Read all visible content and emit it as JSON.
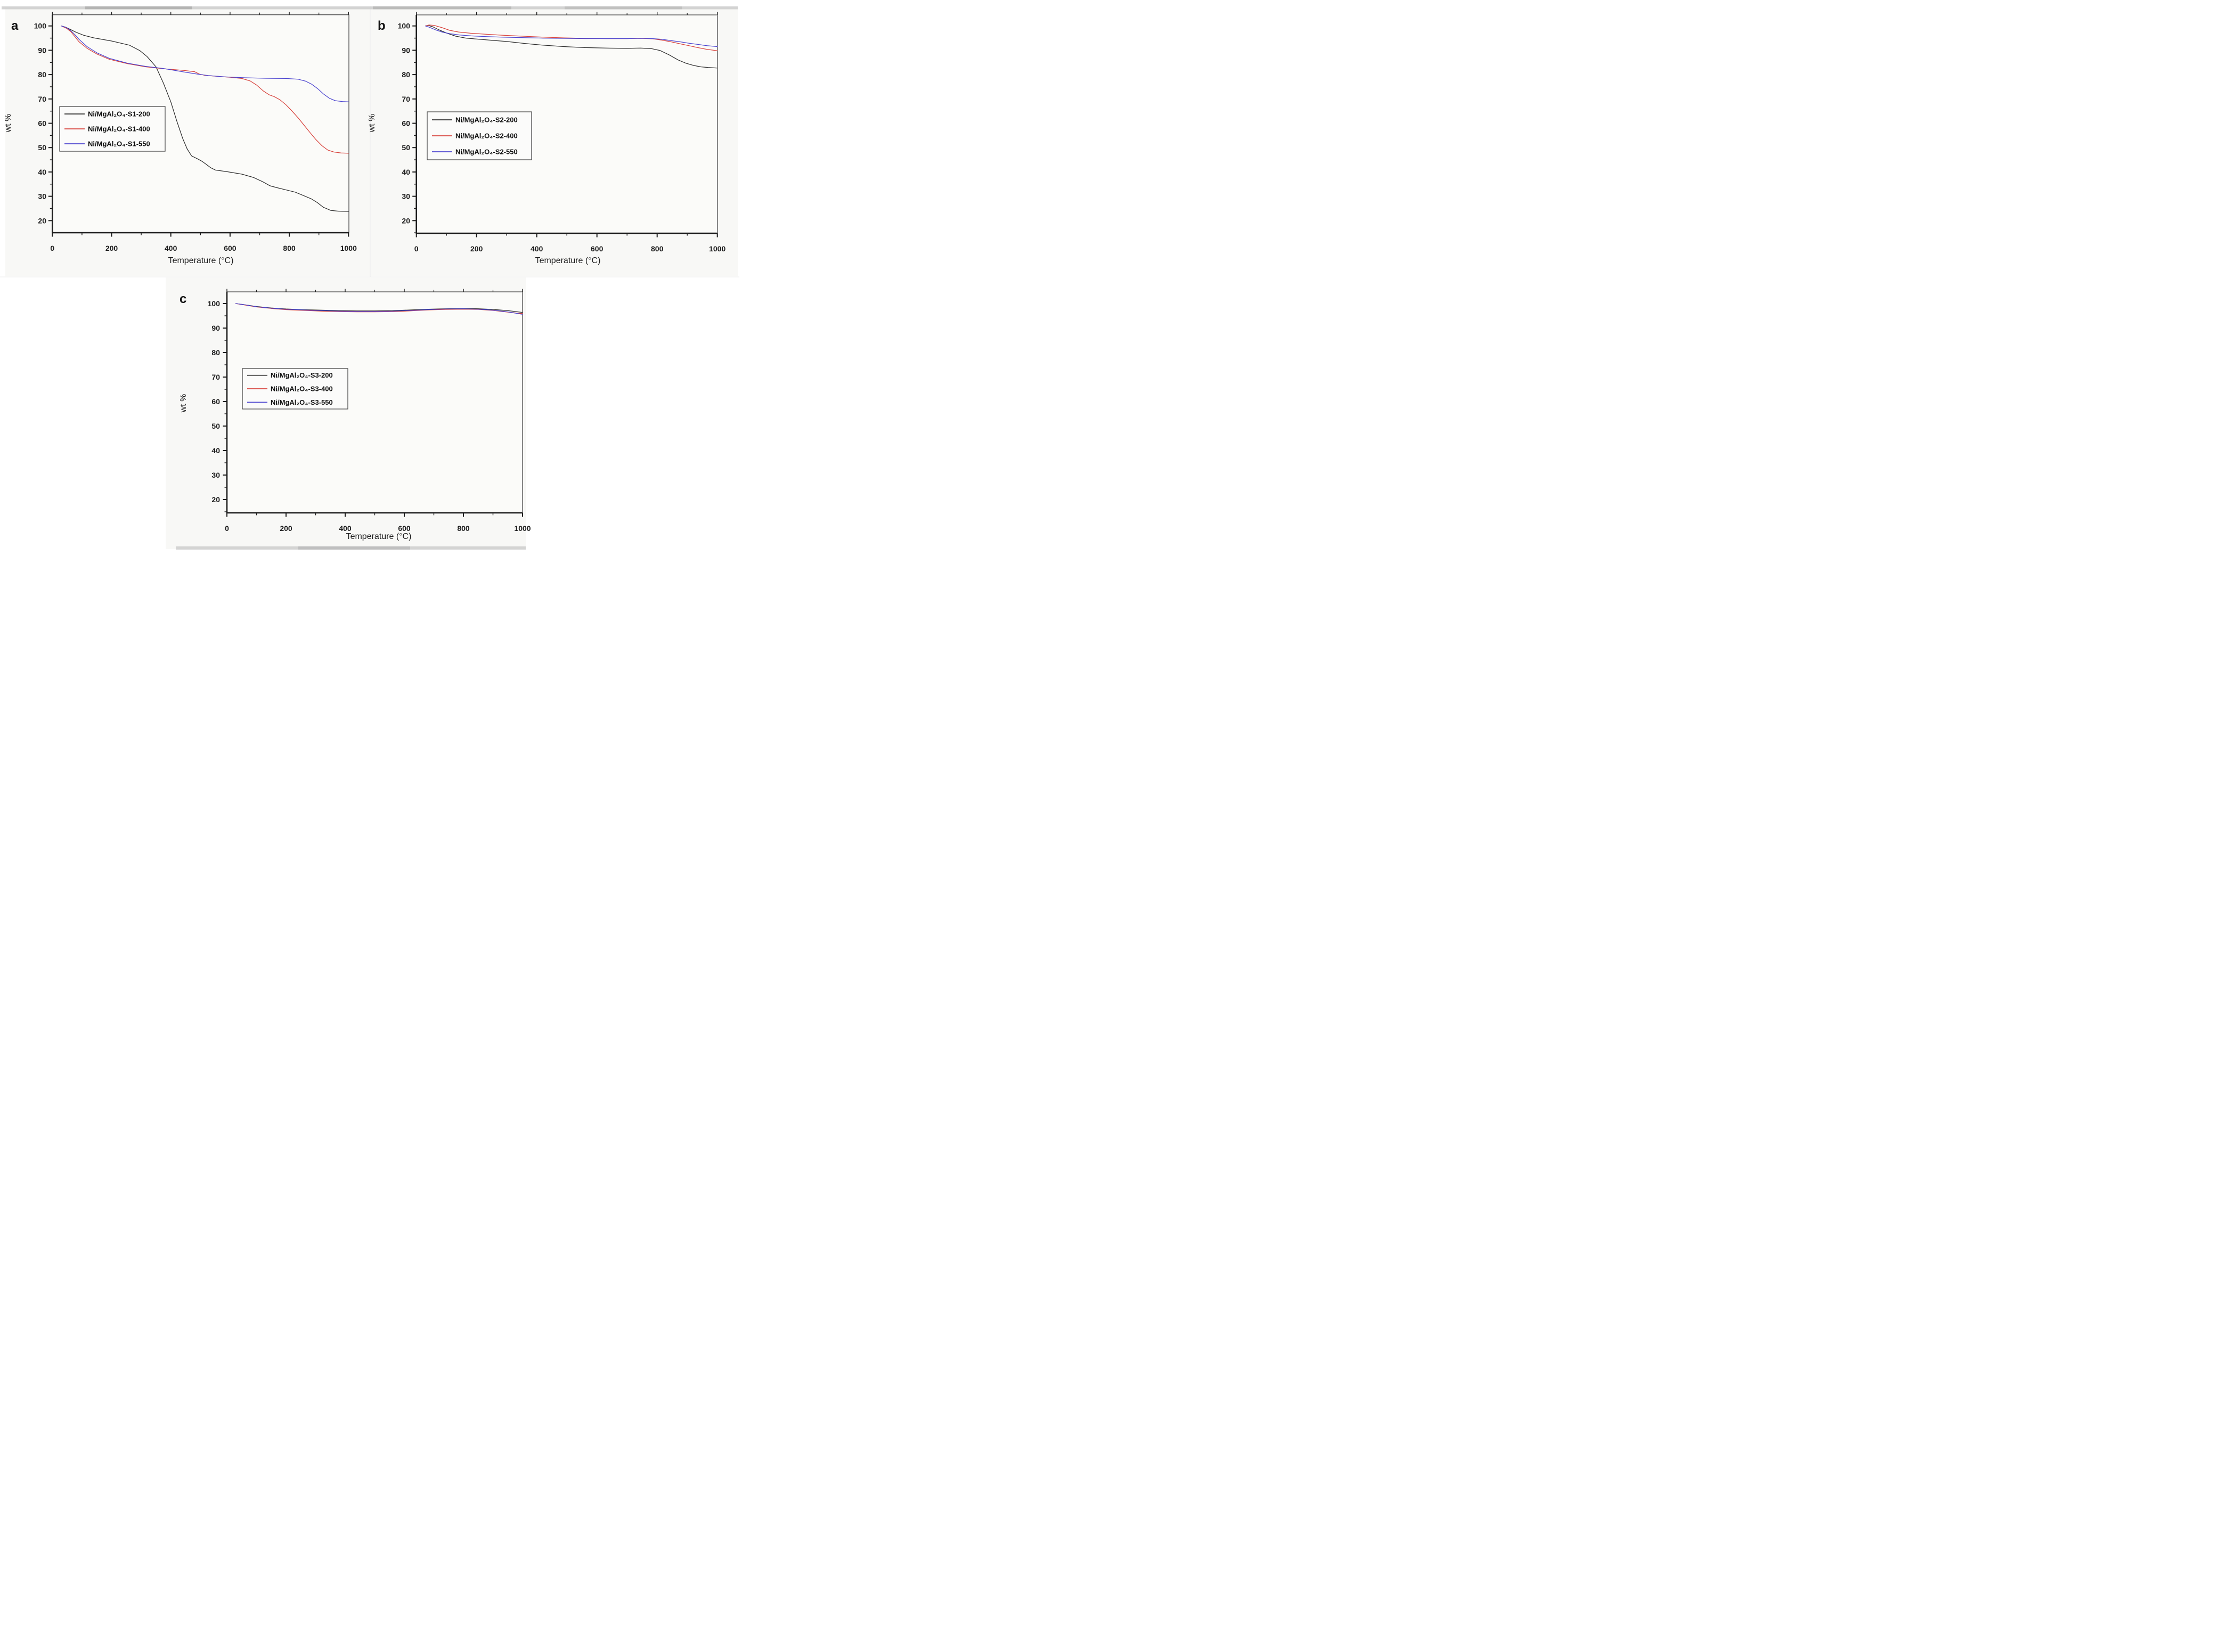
{
  "figure": {
    "kind": "TGA thermogravimetric analysis figure, three panels",
    "background_color": "#ffffff",
    "plot_background_color": "#fbfbf9",
    "axis_color": "#1c1c1c",
    "series_colors": {
      "black": "#2b2b2b",
      "red": "#d8423c",
      "blue": "#4a42cf"
    }
  },
  "chart_data": [
    {
      "id": "a",
      "type": "line",
      "panel_letter": "a",
      "xlabel": "Temperature (°C)",
      "ylabel": "wt %",
      "xlim": [
        0,
        1000
      ],
      "ylim": [
        14,
        105
      ],
      "xticks": [
        0,
        200,
        400,
        600,
        800,
        1000
      ],
      "yticks": [
        20,
        30,
        40,
        50,
        60,
        70,
        80,
        90,
        100
      ],
      "x_minor_step": 100,
      "y_minor_step": 5,
      "grid": false,
      "legend_position": "left-middle",
      "series": [
        {
          "name": "Ni/MgAl₂O₄-S1-200",
          "color": "#2b2b2b",
          "points": [
            [
              30,
              100
            ],
            [
              45,
              99.5
            ],
            [
              60,
              98.6
            ],
            [
              80,
              97.4
            ],
            [
              105,
              96.2
            ],
            [
              140,
              95.1
            ],
            [
              200,
              93.8
            ],
            [
              260,
              92.1
            ],
            [
              295,
              89.9
            ],
            [
              320,
              87.4
            ],
            [
              350,
              83.2
            ],
            [
              375,
              76.5
            ],
            [
              400,
              68.8
            ],
            [
              420,
              61
            ],
            [
              440,
              53.8
            ],
            [
              455,
              49.5
            ],
            [
              470,
              46.6
            ],
            [
              490,
              45.4
            ],
            [
              505,
              44.4
            ],
            [
              520,
              43.1
            ],
            [
              535,
              41.7
            ],
            [
              550,
              40.8
            ],
            [
              590,
              40.1
            ],
            [
              640,
              39.1
            ],
            [
              680,
              37.7
            ],
            [
              710,
              36
            ],
            [
              735,
              34.3
            ],
            [
              760,
              33.5
            ],
            [
              790,
              32.6
            ],
            [
              820,
              31.7
            ],
            [
              850,
              30.2
            ],
            [
              875,
              28.9
            ],
            [
              895,
              27.4
            ],
            [
              915,
              25.5
            ],
            [
              940,
              24.2
            ],
            [
              965,
              23.9
            ],
            [
              1000,
              23.8
            ]
          ]
        },
        {
          "name": "Ni/MgAl₂O₄-S1-400",
          "color": "#d8423c",
          "points": [
            [
              30,
              100
            ],
            [
              48,
              99
            ],
            [
              62,
              97.7
            ],
            [
              76,
              95.6
            ],
            [
              90,
              93.5
            ],
            [
              117,
              90.8
            ],
            [
              151,
              88.4
            ],
            [
              192,
              86.3
            ],
            [
              253,
              84.5
            ],
            [
              315,
              83.2
            ],
            [
              376,
              82.4
            ],
            [
              444,
              81.7
            ],
            [
              480,
              81.2
            ],
            [
              497,
              80.2
            ],
            [
              515,
              79.7
            ],
            [
              555,
              79.3
            ],
            [
              600,
              78.9
            ],
            [
              640,
              78.4
            ],
            [
              668,
              77.4
            ],
            [
              690,
              75.7
            ],
            [
              712,
              73.3
            ],
            [
              732,
              71.7
            ],
            [
              750,
              70.9
            ],
            [
              768,
              69.7
            ],
            [
              788,
              67.7
            ],
            [
              808,
              65.2
            ],
            [
              830,
              62.2
            ],
            [
              850,
              59.2
            ],
            [
              870,
              56.2
            ],
            [
              890,
              53.3
            ],
            [
              910,
              50.8
            ],
            [
              930,
              49
            ],
            [
              950,
              48.2
            ],
            [
              975,
              47.8
            ],
            [
              1000,
              47.7
            ]
          ]
        },
        {
          "name": "Ni/MgAl₂O₄-S1-550",
          "color": "#4a42cf",
          "points": [
            [
              30,
              100
            ],
            [
              48,
              99.3
            ],
            [
              62,
              98.1
            ],
            [
              76,
              96.4
            ],
            [
              90,
              94.5
            ],
            [
              117,
              91.5
            ],
            [
              151,
              88.9
            ],
            [
              192,
              86.7
            ],
            [
              253,
              84.7
            ],
            [
              315,
              83.4
            ],
            [
              376,
              82.5
            ],
            [
              444,
              81.1
            ],
            [
              485,
              80.3
            ],
            [
              526,
              79.6
            ],
            [
              580,
              79.1
            ],
            [
              650,
              78.7
            ],
            [
              720,
              78.5
            ],
            [
              790,
              78.4
            ],
            [
              830,
              78.1
            ],
            [
              855,
              77.3
            ],
            [
              875,
              76.1
            ],
            [
              895,
              74.3
            ],
            [
              915,
              72.1
            ],
            [
              935,
              70.3
            ],
            [
              955,
              69.3
            ],
            [
              980,
              68.9
            ],
            [
              1000,
              68.8
            ]
          ]
        }
      ]
    },
    {
      "id": "b",
      "type": "line",
      "panel_letter": "b",
      "xlabel": "Temperature (°C)",
      "ylabel": "wt %",
      "xlim": [
        0,
        1000
      ],
      "ylim": [
        14,
        105
      ],
      "xticks": [
        0,
        200,
        400,
        600,
        800,
        1000
      ],
      "yticks": [
        20,
        30,
        40,
        50,
        60,
        70,
        80,
        90,
        100
      ],
      "x_minor_step": 100,
      "y_minor_step": 5,
      "grid": false,
      "legend_position": "left-middle",
      "series": [
        {
          "name": "Ni/MgAl₂O₄-S2-200",
          "color": "#2b2b2b",
          "points": [
            [
              30,
              100
            ],
            [
              40,
              100.2
            ],
            [
              55,
              99.6
            ],
            [
              75,
              98.4
            ],
            [
              100,
              97.1
            ],
            [
              130,
              95.8
            ],
            [
              165,
              95
            ],
            [
              210,
              94.5
            ],
            [
              260,
              94
            ],
            [
              300,
              93.6
            ],
            [
              360,
              92.8
            ],
            [
              420,
              92.1
            ],
            [
              490,
              91.5
            ],
            [
              560,
              91.1
            ],
            [
              630,
              90.9
            ],
            [
              700,
              90.8
            ],
            [
              745,
              90.9
            ],
            [
              780,
              90.7
            ],
            [
              810,
              89.9
            ],
            [
              840,
              88.1
            ],
            [
              870,
              86
            ],
            [
              895,
              84.7
            ],
            [
              920,
              83.8
            ],
            [
              945,
              83.2
            ],
            [
              970,
              82.9
            ],
            [
              1000,
              82.7
            ]
          ]
        },
        {
          "name": "Ni/MgAl₂O₄-S2-400",
          "color": "#d8423c",
          "points": [
            [
              30,
              100
            ],
            [
              42,
              100.4
            ],
            [
              60,
              100.2
            ],
            [
              85,
              99.3
            ],
            [
              110,
              98.2
            ],
            [
              140,
              97.5
            ],
            [
              180,
              97
            ],
            [
              230,
              96.6
            ],
            [
              285,
              96.2
            ],
            [
              350,
              95.8
            ],
            [
              420,
              95.4
            ],
            [
              490,
              95.1
            ],
            [
              560,
              94.9
            ],
            [
              630,
              94.8
            ],
            [
              700,
              94.8
            ],
            [
              745,
              94.9
            ],
            [
              785,
              94.7
            ],
            [
              815,
              94.2
            ],
            [
              845,
              93.5
            ],
            [
              875,
              92.7
            ],
            [
              905,
              91.9
            ],
            [
              935,
              91.1
            ],
            [
              965,
              90.4
            ],
            [
              1000,
              89.8
            ]
          ]
        },
        {
          "name": "Ni/MgAl₂O₄-S2-550",
          "color": "#4a42cf",
          "points": [
            [
              30,
              100
            ],
            [
              40,
              99.6
            ],
            [
              52,
              99
            ],
            [
              68,
              98.2
            ],
            [
              88,
              97.4
            ],
            [
              112,
              96.8
            ],
            [
              142,
              96.3
            ],
            [
              182,
              95.9
            ],
            [
              232,
              95.6
            ],
            [
              285,
              95.4
            ],
            [
              350,
              95.2
            ],
            [
              420,
              95
            ],
            [
              490,
              94.9
            ],
            [
              560,
              94.8
            ],
            [
              630,
              94.8
            ],
            [
              700,
              94.8
            ],
            [
              745,
              94.9
            ],
            [
              785,
              94.8
            ],
            [
              815,
              94.5
            ],
            [
              845,
              94
            ],
            [
              875,
              93.5
            ],
            [
              905,
              92.9
            ],
            [
              935,
              92.4
            ],
            [
              965,
              91.9
            ],
            [
              1000,
              91.5
            ]
          ]
        }
      ]
    },
    {
      "id": "c",
      "type": "line",
      "panel_letter": "c",
      "xlabel": "Temperature (°C)",
      "ylabel": "wt %",
      "xlim": [
        0,
        1000
      ],
      "ylim": [
        14,
        105
      ],
      "xticks": [
        0,
        200,
        400,
        600,
        800,
        1000
      ],
      "yticks": [
        20,
        30,
        40,
        50,
        60,
        70,
        80,
        90,
        100
      ],
      "x_minor_step": 100,
      "y_minor_step": 5,
      "grid": false,
      "legend_position": "left-middle",
      "series": [
        {
          "name": "Ni/MgAl₂O₄-S3-200",
          "color": "#2b2b2b",
          "points": [
            [
              30,
              100
            ],
            [
              60,
              99.5
            ],
            [
              100,
              98.8
            ],
            [
              150,
              98.2
            ],
            [
              200,
              97.8
            ],
            [
              260,
              97.5
            ],
            [
              320,
              97.3
            ],
            [
              380,
              97.1
            ],
            [
              440,
              97
            ],
            [
              500,
              97
            ],
            [
              560,
              97.1
            ],
            [
              620,
              97.4
            ],
            [
              680,
              97.7
            ],
            [
              740,
              97.9
            ],
            [
              800,
              98
            ],
            [
              850,
              97.9
            ],
            [
              900,
              97.6
            ],
            [
              950,
              97.1
            ],
            [
              1000,
              96.4
            ]
          ]
        },
        {
          "name": "Ni/MgAl₂O₄-S3-400",
          "color": "#d8423c",
          "points": [
            [
              30,
              100
            ],
            [
              60,
              99.4
            ],
            [
              100,
              98.6
            ],
            [
              150,
              98
            ],
            [
              200,
              97.5
            ],
            [
              260,
              97.2
            ],
            [
              320,
              96.9
            ],
            [
              380,
              96.7
            ],
            [
              440,
              96.6
            ],
            [
              500,
              96.6
            ],
            [
              560,
              96.7
            ],
            [
              620,
              97
            ],
            [
              680,
              97.4
            ],
            [
              740,
              97.6
            ],
            [
              800,
              97.7
            ],
            [
              850,
              97.6
            ],
            [
              900,
              97.2
            ],
            [
              950,
              96.5
            ],
            [
              1000,
              95.9
            ]
          ]
        },
        {
          "name": "Ni/MgAl₂O₄-S3-550",
          "color": "#4a42cf",
          "points": [
            [
              30,
              100
            ],
            [
              60,
              99.5
            ],
            [
              100,
              98.7
            ],
            [
              150,
              98.1
            ],
            [
              200,
              97.7
            ],
            [
              260,
              97.4
            ],
            [
              320,
              97.1
            ],
            [
              380,
              96.9
            ],
            [
              440,
              96.8
            ],
            [
              500,
              96.8
            ],
            [
              560,
              96.9
            ],
            [
              620,
              97.2
            ],
            [
              680,
              97.5
            ],
            [
              740,
              97.8
            ],
            [
              800,
              97.9
            ],
            [
              850,
              97.7
            ],
            [
              900,
              97.3
            ],
            [
              950,
              96.6
            ],
            [
              1000,
              95.6
            ]
          ]
        }
      ]
    }
  ]
}
